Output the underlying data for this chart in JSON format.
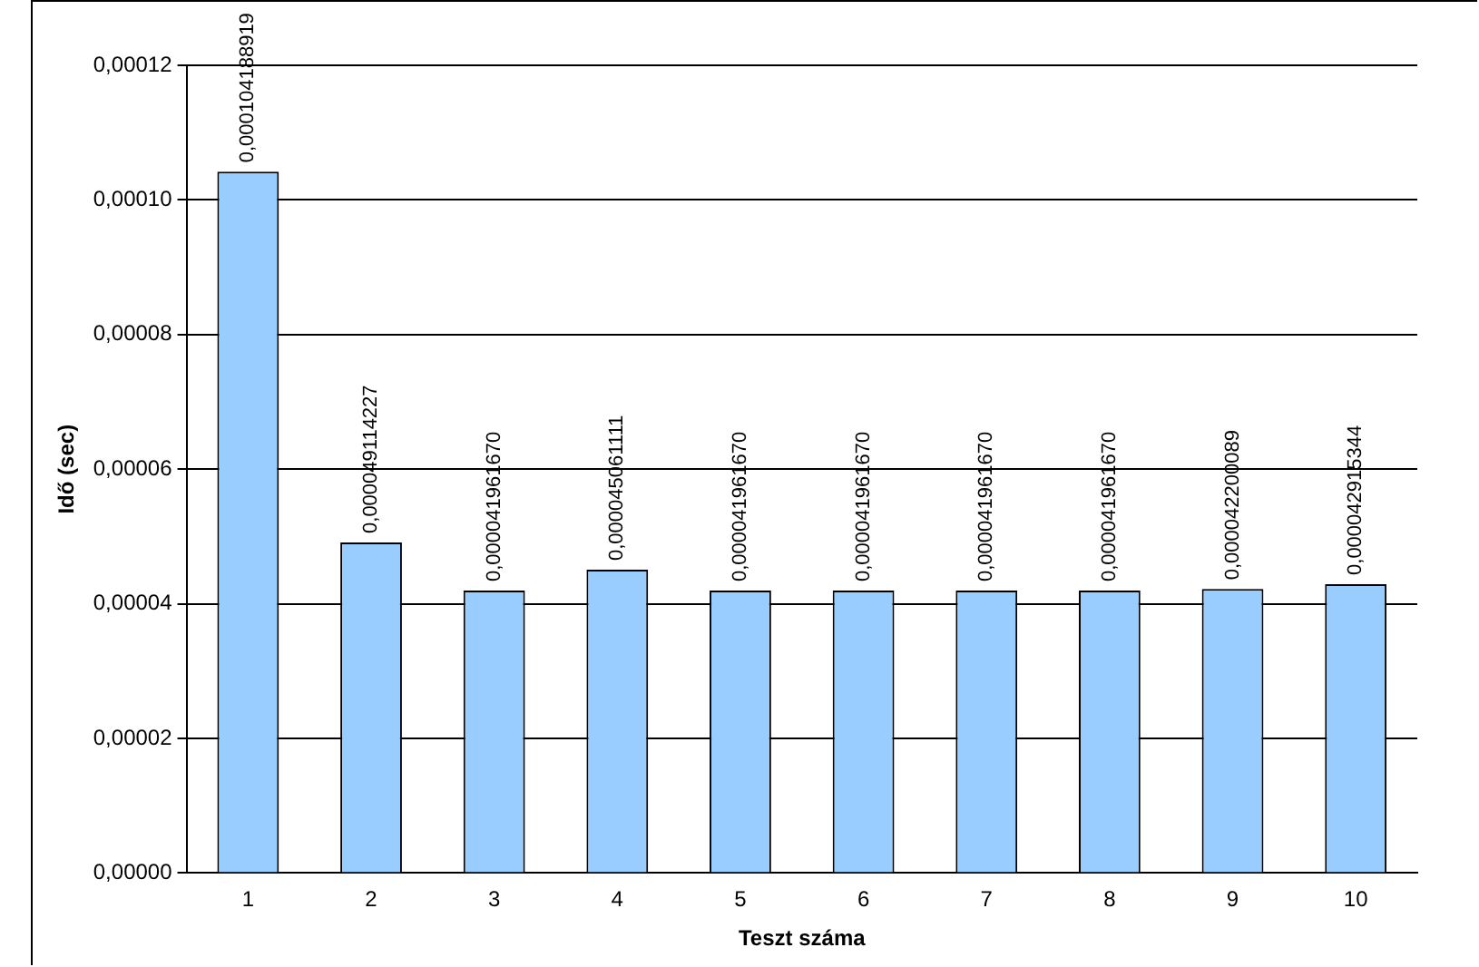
{
  "chart_data": {
    "type": "bar",
    "xlabel": "Teszt száma",
    "ylabel": "Idő (sec)",
    "categories": [
      "1",
      "2",
      "3",
      "4",
      "5",
      "6",
      "7",
      "8",
      "9",
      "10"
    ],
    "values": [
      0.000104188919,
      4.9114227e-05,
      4.196167e-05,
      4.5061111e-05,
      4.196167e-05,
      4.196167e-05,
      4.196167e-05,
      4.196167e-05,
      4.2200089e-05,
      4.2915344e-05
    ],
    "value_labels": [
      "0,000104188919",
      "0,000049114227",
      "0,000041961670",
      "0,000045061111",
      "0,000041961670",
      "0,000041961670",
      "0,000041961670",
      "0,000041961670",
      "0,000042200089",
      "0,000042915344"
    ],
    "color": "#99ccff",
    "ylim": [
      0,
      0.00012
    ],
    "yticks": [
      {
        "value": 0,
        "label": "0,00000"
      },
      {
        "value": 2e-05,
        "label": "0,00002"
      },
      {
        "value": 4e-05,
        "label": "0,00004"
      },
      {
        "value": 6e-05,
        "label": "0,00006"
      },
      {
        "value": 8e-05,
        "label": "0,00008"
      },
      {
        "value": 0.0001,
        "label": "0,00010"
      },
      {
        "value": 0.00012,
        "label": "0,00012"
      }
    ],
    "grid": "y",
    "legend": false
  }
}
